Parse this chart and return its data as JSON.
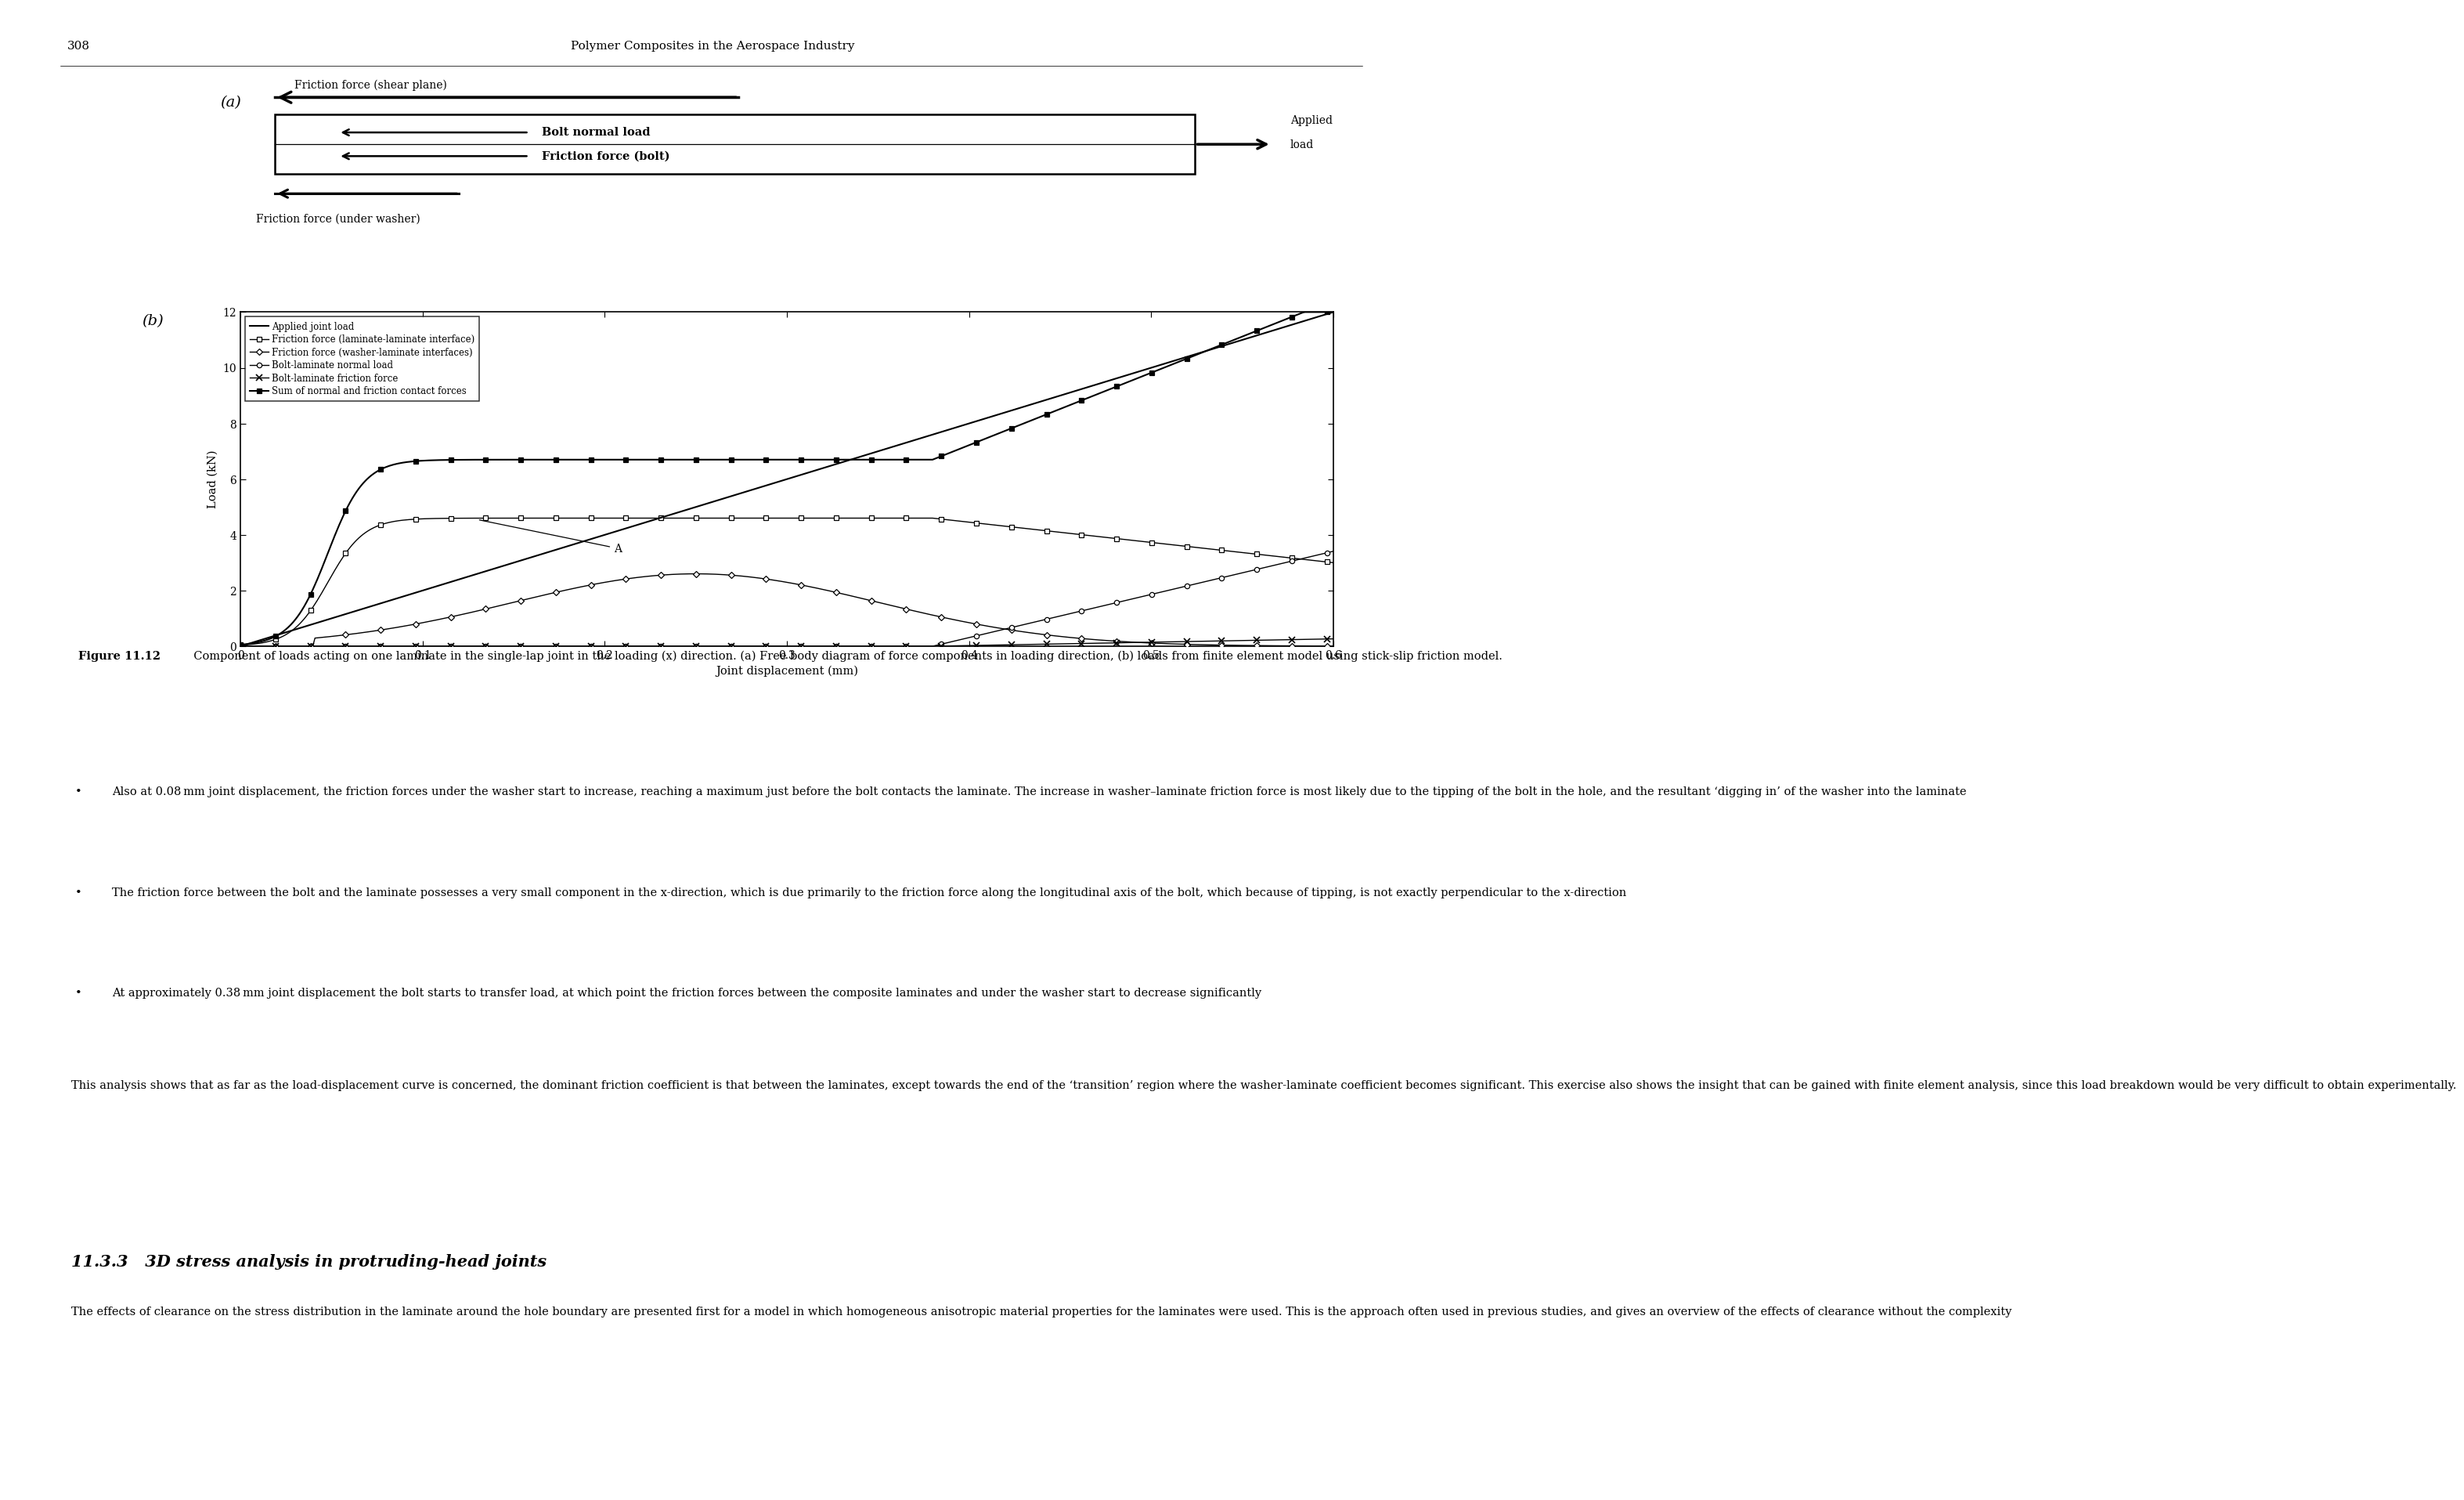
{
  "page_number": "308",
  "header_text": "Polymer Composites in the Aerospace Industry",
  "figure_caption_bold": "Figure 11.12",
  "figure_caption_rest": "  Component of loads acting on one laminate in the single-lap joint in the loading (x) direction. (a) Free body diagram of force components in loading direction, (b) loads from finite element model using stick-slip friction model.",
  "bullet_points": [
    "Also at 0.08 mm joint displacement, the friction forces under the washer start to increase, reaching a maximum just before the bolt contacts the laminate. The increase in washer–laminate friction force is most likely due to the tipping of the bolt in the hole, and the resultant ‘digging in’ of the washer into the laminate",
    "The friction force between the bolt and the laminate possesses a very small component in the x-direction, which is due primarily to the friction force along the longitudinal axis of the bolt, which because of tipping, is not exactly perpendicular to the x-direction",
    "At approximately 0.38 mm joint displacement the bolt starts to transfer load, at which point the friction forces between the composite laminates and under the washer start to decrease significantly"
  ],
  "paragraph_text": "This analysis shows that as far as the load-displacement curve is concerned, the dominant friction coefficient is that between the laminates, except towards the end of the ‘transition’ region where the washer-laminate coefficient becomes significant. This exercise also shows the insight that can be gained with finite element analysis, since this load breakdown would be very difficult to obtain experimentally.",
  "section_heading": "11.3.3   3D stress analysis in protruding-head joints",
  "section_text": "The effects of clearance on the stress distribution in the laminate around the hole boundary are presented first for a model in which homogeneous anisotropic material properties for the laminates were used. This is the approach often used in previous studies, and gives an overview of the effects of clearance without the complexity",
  "graph": {
    "xlabel": "Joint displacement (mm)",
    "ylabel": "Load (kN)",
    "xlim": [
      0,
      0.6
    ],
    "ylim": [
      0,
      12
    ],
    "xticks": [
      0,
      0.1,
      0.2,
      0.3,
      0.4,
      0.5,
      0.6
    ],
    "yticks": [
      0,
      2,
      4,
      6,
      8,
      10,
      12
    ]
  }
}
